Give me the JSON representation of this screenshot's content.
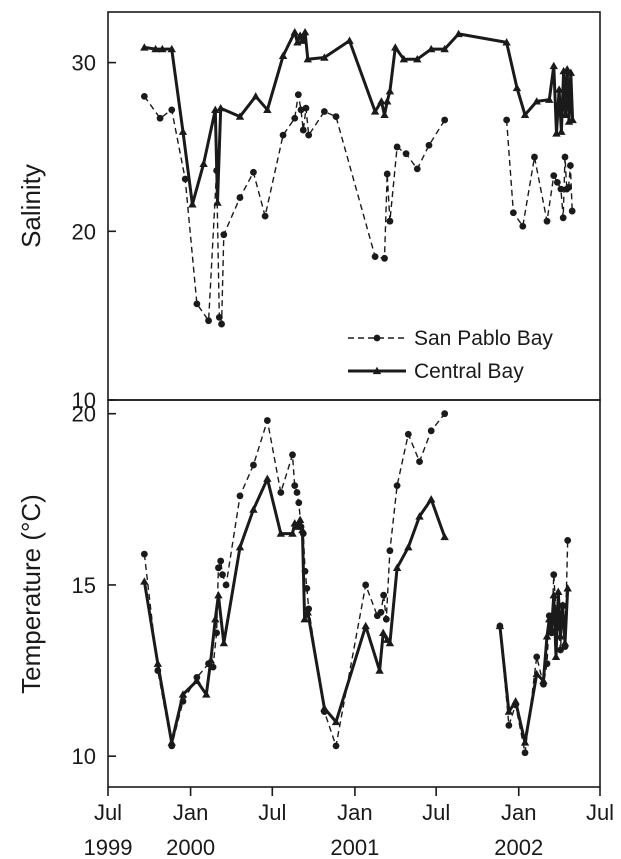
{
  "chart_data": [
    {
      "type": "line",
      "ylabel": "Salinity",
      "ylim": [
        10,
        33
      ],
      "yticks": [
        10,
        20,
        30
      ],
      "x_axis": "shared",
      "legend": {
        "placement": "bottom-right",
        "entries": [
          "San Pablo Bay",
          "Central Bay"
        ]
      },
      "series": [
        {
          "name": "San Pablo Bay",
          "style": "dashed-circle",
          "segments": [
            [
              [
                "1999-09-20",
                28.0
              ],
              [
                "1999-10-25",
                26.7
              ],
              [
                "1999-11-20",
                27.2
              ],
              [
                "1999-12-20",
                23.1
              ],
              [
                "2000-01-15",
                15.7
              ],
              [
                "2000-02-10",
                14.7
              ],
              [
                "2000-02-28",
                23.6
              ],
              [
                "2000-03-05",
                14.9
              ],
              [
                "2000-03-10",
                14.5
              ],
              [
                "2000-03-15",
                19.8
              ],
              [
                "2000-04-20",
                22.0
              ],
              [
                "2000-05-20",
                23.5
              ],
              [
                "2000-06-15",
                20.9
              ],
              [
                "2000-07-25",
                25.7
              ],
              [
                "2000-08-20",
                26.7
              ],
              [
                "2000-08-28",
                28.1
              ],
              [
                "2000-09-03",
                27.2
              ],
              [
                "2000-09-08",
                26.0
              ],
              [
                "2000-09-14",
                27.3
              ],
              [
                "2000-09-20",
                25.7
              ],
              [
                "2000-10-25",
                27.1
              ],
              [
                "2000-11-20",
                26.8
              ],
              [
                "2001-02-15",
                18.5
              ],
              [
                "2001-03-08",
                18.4
              ],
              [
                "2001-03-14",
                23.4
              ],
              [
                "2001-03-20",
                20.6
              ],
              [
                "2001-04-05",
                25.0
              ],
              [
                "2001-04-25",
                24.6
              ],
              [
                "2001-05-20",
                23.7
              ],
              [
                "2001-06-15",
                25.1
              ],
              [
                "2001-07-20",
                26.6
              ]
            ],
            [
              [
                "2001-12-05",
                26.6
              ],
              [
                "2001-12-20",
                21.1
              ],
              [
                "2002-01-10",
                20.3
              ],
              [
                "2002-02-05",
                24.4
              ],
              [
                "2002-03-05",
                20.6
              ],
              [
                "2002-03-20",
                23.3
              ],
              [
                "2002-03-28",
                22.9
              ],
              [
                "2002-04-05",
                22.5
              ],
              [
                "2002-04-10",
                20.8
              ],
              [
                "2002-04-14",
                24.4
              ],
              [
                "2002-04-18",
                22.5
              ],
              [
                "2002-04-22",
                22.6
              ],
              [
                "2002-04-26",
                23.9
              ],
              [
                "2002-04-30",
                21.2
              ]
            ]
          ]
        },
        {
          "name": "Central Bay",
          "style": "solid-triangle",
          "segments": [
            [
              [
                "1999-09-20",
                30.9
              ],
              [
                "1999-10-15",
                30.8
              ],
              [
                "1999-10-30",
                30.8
              ],
              [
                "1999-11-20",
                30.8
              ],
              [
                "1999-12-15",
                25.9
              ],
              [
                "2000-01-05",
                21.6
              ],
              [
                "2000-01-30",
                24.0
              ],
              [
                "2000-02-25",
                27.2
              ],
              [
                "2000-03-01",
                21.7
              ],
              [
                "2000-03-08",
                27.3
              ],
              [
                "2000-04-20",
                26.8
              ],
              [
                "2000-05-25",
                28.0
              ],
              [
                "2000-06-20",
                27.2
              ],
              [
                "2000-07-25",
                30.4
              ],
              [
                "2000-08-20",
                31.8
              ],
              [
                "2000-08-26",
                31.2
              ],
              [
                "2000-09-01",
                31.6
              ],
              [
                "2000-09-06",
                31.3
              ],
              [
                "2000-09-12",
                31.8
              ],
              [
                "2000-09-18",
                30.2
              ],
              [
                "2000-10-25",
                30.3
              ],
              [
                "2000-12-20",
                31.3
              ],
              [
                "2001-02-15",
                27.1
              ],
              [
                "2001-03-01",
                27.7
              ],
              [
                "2001-03-08",
                26.9
              ],
              [
                "2001-03-14",
                27.7
              ],
              [
                "2001-03-20",
                28.3
              ],
              [
                "2001-04-01",
                30.9
              ],
              [
                "2001-04-20",
                30.2
              ],
              [
                "2001-05-20",
                30.2
              ],
              [
                "2001-06-20",
                30.8
              ],
              [
                "2001-07-20",
                30.8
              ],
              [
                "2001-08-20",
                31.7
              ],
              [
                "2001-12-05",
                31.2
              ],
              [
                "2001-12-28",
                28.5
              ],
              [
                "2002-01-15",
                26.9
              ],
              [
                "2002-02-10",
                27.7
              ],
              [
                "2002-03-10",
                27.8
              ],
              [
                "2002-03-20",
                29.8
              ],
              [
                "2002-03-26",
                25.8
              ],
              [
                "2002-04-01",
                28.4
              ],
              [
                "2002-04-06",
                25.9
              ],
              [
                "2002-04-11",
                29.5
              ],
              [
                "2002-04-15",
                26.9
              ],
              [
                "2002-04-19",
                29.6
              ],
              [
                "2002-04-23",
                26.5
              ],
              [
                "2002-04-27",
                29.4
              ],
              [
                "2002-05-01",
                26.6
              ]
            ]
          ]
        }
      ]
    },
    {
      "type": "line",
      "ylabel": "Temperature (°C)",
      "ylim": [
        9.1,
        20.4
      ],
      "yticks": [
        10,
        15,
        20
      ],
      "x_axis": "shared",
      "series": [
        {
          "name": "San Pablo Bay",
          "style": "dashed-circle",
          "segments": [
            [
              [
                "1999-09-20",
                15.9
              ],
              [
                "1999-10-20",
                12.5
              ],
              [
                "1999-11-20",
                10.3
              ],
              [
                "1999-12-15",
                11.6
              ],
              [
                "2000-01-15",
                12.3
              ],
              [
                "2000-02-10",
                12.7
              ],
              [
                "2000-02-20",
                12.6
              ],
              [
                "2000-02-28",
                13.6
              ],
              [
                "2000-03-03",
                15.5
              ],
              [
                "2000-03-08",
                15.7
              ],
              [
                "2000-03-12",
                15.3
              ],
              [
                "2000-03-20",
                15.0
              ],
              [
                "2000-04-20",
                17.6
              ],
              [
                "2000-05-20",
                18.5
              ],
              [
                "2000-06-20",
                19.8
              ],
              [
                "2000-07-20",
                17.7
              ],
              [
                "2000-08-15",
                18.8
              ],
              [
                "2000-08-20",
                17.9
              ],
              [
                "2000-08-25",
                17.7
              ],
              [
                "2000-08-29",
                17.4
              ],
              [
                "2000-09-03",
                16.7
              ],
              [
                "2000-09-08",
                16.5
              ],
              [
                "2000-09-12",
                15.4
              ],
              [
                "2000-09-16",
                14.9
              ],
              [
                "2000-09-20",
                14.3
              ],
              [
                "2000-10-25",
                11.3
              ],
              [
                "2000-11-20",
                10.3
              ],
              [
                "2001-01-25",
                15.0
              ],
              [
                "2001-02-20",
                14.1
              ],
              [
                "2001-02-28",
                14.2
              ],
              [
                "2001-03-06",
                14.7
              ],
              [
                "2001-03-12",
                14.0
              ],
              [
                "2001-03-20",
                16.0
              ],
              [
                "2001-04-05",
                17.9
              ],
              [
                "2001-04-30",
                19.4
              ],
              [
                "2001-05-25",
                18.6
              ],
              [
                "2001-06-20",
                19.5
              ],
              [
                "2001-07-20",
                20.0
              ]
            ],
            [
              [
                "2001-11-20",
                13.8
              ],
              [
                "2001-12-10",
                10.9
              ],
              [
                "2001-12-25",
                11.5
              ],
              [
                "2002-01-15",
                10.1
              ],
              [
                "2002-02-10",
                12.9
              ],
              [
                "2002-02-25",
                12.1
              ],
              [
                "2002-03-05",
                12.7
              ],
              [
                "2002-03-10",
                14.1
              ],
              [
                "2002-03-15",
                13.6
              ],
              [
                "2002-03-20",
                15.3
              ],
              [
                "2002-03-25",
                14.2
              ],
              [
                "2002-03-30",
                13.8
              ],
              [
                "2002-04-04",
                13.1
              ],
              [
                "2002-04-09",
                14.4
              ],
              [
                "2002-04-14",
                13.2
              ],
              [
                "2002-04-20",
                16.3
              ]
            ]
          ]
        },
        {
          "name": "Central Bay",
          "style": "solid-triangle",
          "segments": [
            [
              [
                "1999-09-20",
                15.1
              ],
              [
                "1999-10-20",
                12.7
              ],
              [
                "1999-11-20",
                10.4
              ],
              [
                "1999-12-15",
                11.8
              ],
              [
                "2000-01-15",
                12.2
              ],
              [
                "2000-02-05",
                11.8
              ],
              [
                "2000-02-15",
                12.8
              ],
              [
                "2000-02-25",
                14.0
              ],
              [
                "2000-03-03",
                14.7
              ],
              [
                "2000-03-15",
                13.3
              ],
              [
                "2000-04-20",
                16.1
              ],
              [
                "2000-05-20",
                17.2
              ],
              [
                "2000-06-20",
                18.1
              ],
              [
                "2000-07-20",
                16.5
              ],
              [
                "2000-08-15",
                16.5
              ],
              [
                "2000-08-20",
                16.8
              ],
              [
                "2000-08-26",
                16.7
              ],
              [
                "2000-09-01",
                16.9
              ],
              [
                "2000-09-06",
                16.6
              ],
              [
                "2000-09-11",
                14.0
              ],
              [
                "2000-09-18",
                14.2
              ],
              [
                "2000-10-25",
                11.4
              ],
              [
                "2000-11-20",
                11.0
              ],
              [
                "2001-01-25",
                13.8
              ],
              [
                "2001-02-25",
                12.5
              ],
              [
                "2001-03-05",
                13.6
              ],
              [
                "2001-03-14",
                13.4
              ],
              [
                "2001-03-20",
                13.3
              ],
              [
                "2001-04-05",
                15.5
              ],
              [
                "2001-04-30",
                16.1
              ],
              [
                "2001-05-25",
                17.0
              ],
              [
                "2001-06-20",
                17.5
              ],
              [
                "2001-07-20",
                16.4
              ]
            ],
            [
              [
                "2001-11-20",
                13.8
              ],
              [
                "2001-12-10",
                11.3
              ],
              [
                "2001-12-25",
                11.6
              ],
              [
                "2002-01-15",
                10.4
              ],
              [
                "2002-02-10",
                12.4
              ],
              [
                "2002-02-25",
                12.2
              ],
              [
                "2002-03-05",
                13.5
              ],
              [
                "2002-03-10",
                14.0
              ],
              [
                "2002-03-15",
                13.7
              ],
              [
                "2002-03-20",
                14.7
              ],
              [
                "2002-03-25",
                12.9
              ],
              [
                "2002-03-30",
                14.8
              ],
              [
                "2002-04-04",
                13.5
              ],
              [
                "2002-04-09",
                14.4
              ],
              [
                "2002-04-14",
                13.3
              ],
              [
                "2002-04-20",
                14.9
              ]
            ]
          ]
        }
      ]
    }
  ],
  "x_axis": {
    "range": [
      "1999-07-01",
      "2002-07-01"
    ],
    "ticks": [
      {
        "date": "1999-07-01",
        "label": "Jul",
        "year": "1999"
      },
      {
        "date": "2000-01-01",
        "label": "Jan",
        "year": "2000"
      },
      {
        "date": "2000-07-01",
        "label": "Jul",
        "year": ""
      },
      {
        "date": "2001-01-01",
        "label": "Jan",
        "year": "2001"
      },
      {
        "date": "2001-07-01",
        "label": "Jul",
        "year": ""
      },
      {
        "date": "2002-01-01",
        "label": "Jan",
        "year": "2002"
      },
      {
        "date": "2002-07-01",
        "label": "Jul",
        "year": ""
      }
    ]
  }
}
